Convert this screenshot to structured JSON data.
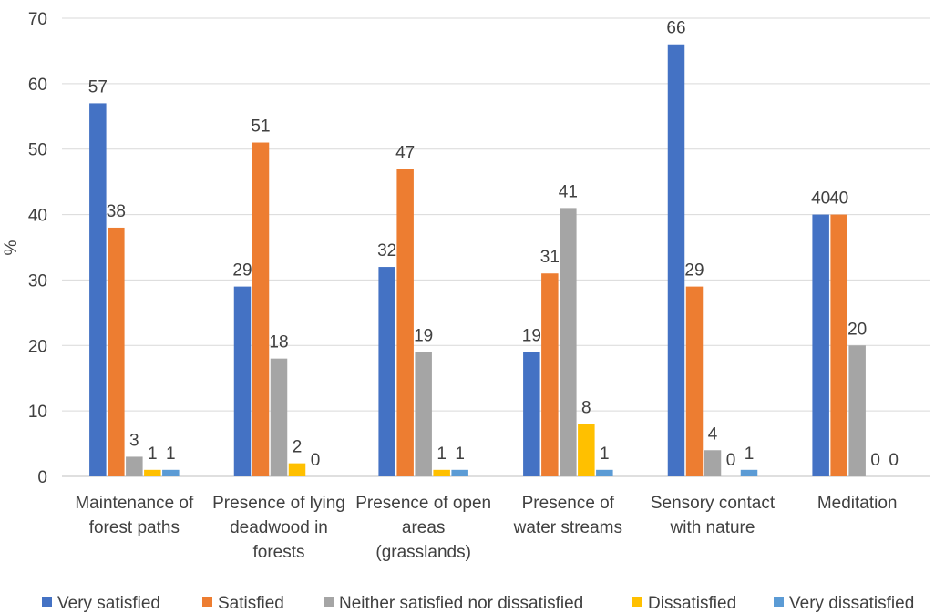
{
  "chart_data": {
    "type": "bar",
    "title": "",
    "xlabel": "",
    "ylabel": "%",
    "ylim": [
      0,
      70
    ],
    "yticks": [
      0,
      10,
      20,
      30,
      40,
      50,
      60,
      70
    ],
    "grid": true,
    "legend_position": "bottom",
    "categories": [
      [
        "Maintenance of",
        "forest paths"
      ],
      [
        "Presence of lying",
        "deadwood in",
        "forests"
      ],
      [
        "Presence of open",
        "areas",
        "(grasslands)"
      ],
      [
        "Presence of",
        "water streams"
      ],
      [
        "Sensory contact",
        "with nature"
      ],
      [
        "Meditation"
      ]
    ],
    "series": [
      {
        "name": "Very satisfied",
        "color": "#4472C4",
        "values": [
          57,
          29,
          32,
          19,
          66,
          40
        ]
      },
      {
        "name": "Satisfied",
        "color": "#ED7D31",
        "values": [
          38,
          51,
          47,
          31,
          29,
          40
        ]
      },
      {
        "name": "Neither satisfied nor dissatisfied",
        "color": "#A5A5A5",
        "values": [
          3,
          18,
          19,
          41,
          4,
          20
        ]
      },
      {
        "name": "Dissatisfied",
        "color": "#FFC000",
        "values": [
          1,
          2,
          1,
          8,
          0,
          0
        ]
      },
      {
        "name": "Very dissatisfied",
        "color": "#5B9BD5",
        "values": [
          1,
          0,
          1,
          1,
          1,
          0
        ]
      }
    ]
  }
}
